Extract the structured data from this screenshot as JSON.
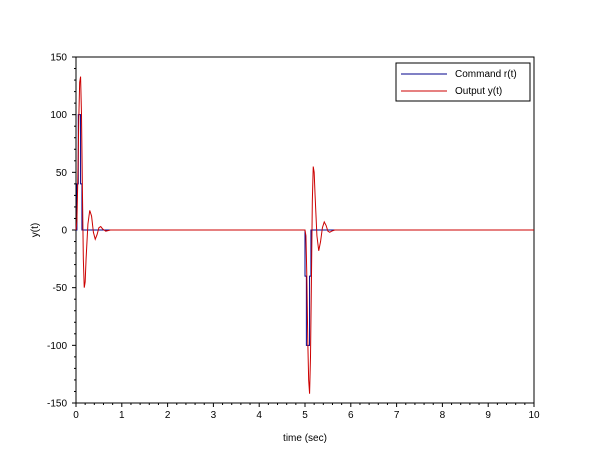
{
  "chart_data": {
    "type": "line",
    "title": "",
    "xlabel": "time (sec)",
    "ylabel": "y(t)",
    "xlim": [
      0,
      10
    ],
    "ylim": [
      -150,
      150
    ],
    "xticks": [
      0,
      1,
      2,
      3,
      4,
      5,
      6,
      7,
      8,
      9,
      10
    ],
    "yticks": [
      -150,
      -100,
      -50,
      0,
      50,
      100,
      150
    ],
    "xtick_labels": [
      "0",
      "1",
      "2",
      "3",
      "4",
      "5",
      "6",
      "7",
      "8",
      "9",
      "10"
    ],
    "ytick_labels": [
      "-150",
      "-100",
      "-50",
      "0",
      "50",
      "100",
      "150"
    ],
    "grid": false,
    "legend_position": "top-right",
    "series": [
      {
        "name": "Command r(t)",
        "color": "#00008b",
        "x": [
          0,
          0.02,
          0.02,
          0.05,
          0.05,
          0.1,
          0.1,
          0.13,
          0.13,
          0.15,
          0.15,
          5.0,
          5.0,
          5.03,
          5.03,
          5.1,
          5.1,
          5.13,
          5.13,
          10
        ],
        "y": [
          0,
          0,
          40,
          40,
          100,
          100,
          40,
          40,
          0,
          0,
          0,
          0,
          -40,
          -40,
          -100,
          -100,
          -40,
          -40,
          0,
          0
        ]
      },
      {
        "name": "Output y(t)",
        "color": "#cc0000",
        "x": [
          0,
          0.02,
          0.04,
          0.06,
          0.08,
          0.1,
          0.12,
          0.14,
          0.16,
          0.18,
          0.2,
          0.22,
          0.26,
          0.3,
          0.34,
          0.38,
          0.42,
          0.46,
          0.5,
          0.54,
          0.58,
          0.65,
          0.75,
          5.0,
          5.02,
          5.04,
          5.06,
          5.08,
          5.1,
          5.12,
          5.14,
          5.16,
          5.18,
          5.2,
          5.22,
          5.26,
          5.3,
          5.34,
          5.38,
          5.42,
          5.46,
          5.5,
          5.54,
          5.58,
          5.65,
          5.75,
          10
        ],
        "y": [
          0,
          8,
          45,
          95,
          128,
          133,
          100,
          35,
          -25,
          -50,
          -45,
          -25,
          5,
          17,
          12,
          -2,
          -8,
          -4,
          2,
          3,
          1,
          -1,
          0,
          0,
          -5,
          -40,
          -95,
          -130,
          -142,
          -110,
          -45,
          25,
          55,
          50,
          30,
          -5,
          -18,
          -10,
          2,
          7,
          4,
          -1,
          -2,
          -1,
          0,
          0,
          0
        ]
      }
    ]
  }
}
